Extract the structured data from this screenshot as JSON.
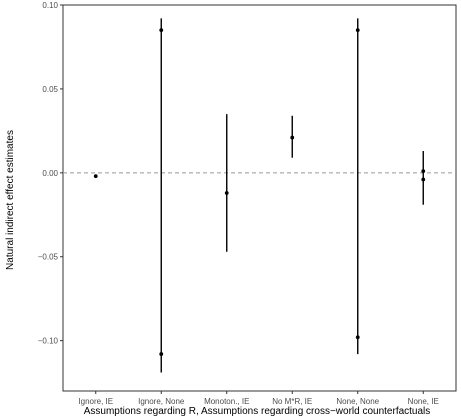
{
  "chart_data": {
    "type": "scatter",
    "xlabel": "Assumptions regarding R, Assumptions regarding cross−world counterfactuals",
    "ylabel": "Natural indirect effect estimates",
    "categories": [
      "Ignore, IE",
      "Ignore, None",
      "Monoton., IE",
      "No M*R, IE",
      "None, None",
      "None, IE"
    ],
    "ylim": [
      -0.13,
      0.1
    ],
    "yticks": [
      0.1,
      0.05,
      0.0,
      -0.05,
      -0.1
    ],
    "ytick_labels": [
      "0.10",
      "0.05",
      "0.00",
      "−0.05",
      "−0.10"
    ],
    "reference_line": {
      "y": 0,
      "style": "dashed"
    },
    "grid": false,
    "intervals": [
      {
        "category": "Ignore, IE",
        "low": -0.003,
        "high": -0.001
      },
      {
        "category": "Ignore, None",
        "low": -0.119,
        "high": 0.092
      },
      {
        "category": "Monoton., IE",
        "low": -0.047,
        "high": 0.035
      },
      {
        "category": "No M*R, IE",
        "low": 0.009,
        "high": 0.034
      },
      {
        "category": "None, None",
        "low": -0.108,
        "high": 0.092
      },
      {
        "category": "None, IE",
        "low": -0.019,
        "high": 0.013
      }
    ],
    "points": [
      {
        "category": "Ignore, IE",
        "y": -0.002
      },
      {
        "category": "Ignore, None",
        "y": 0.085
      },
      {
        "category": "Ignore, None",
        "y": -0.108
      },
      {
        "category": "Monoton., IE",
        "y": -0.012
      },
      {
        "category": "No M*R, IE",
        "y": 0.021
      },
      {
        "category": "None, None",
        "y": 0.085
      },
      {
        "category": "None, None",
        "y": -0.098
      },
      {
        "category": "None, IE",
        "y": 0.001
      },
      {
        "category": "None, IE",
        "y": -0.004
      }
    ],
    "colors": {
      "marks": "#000000",
      "reference": "#999999",
      "axis": "#333333"
    }
  }
}
